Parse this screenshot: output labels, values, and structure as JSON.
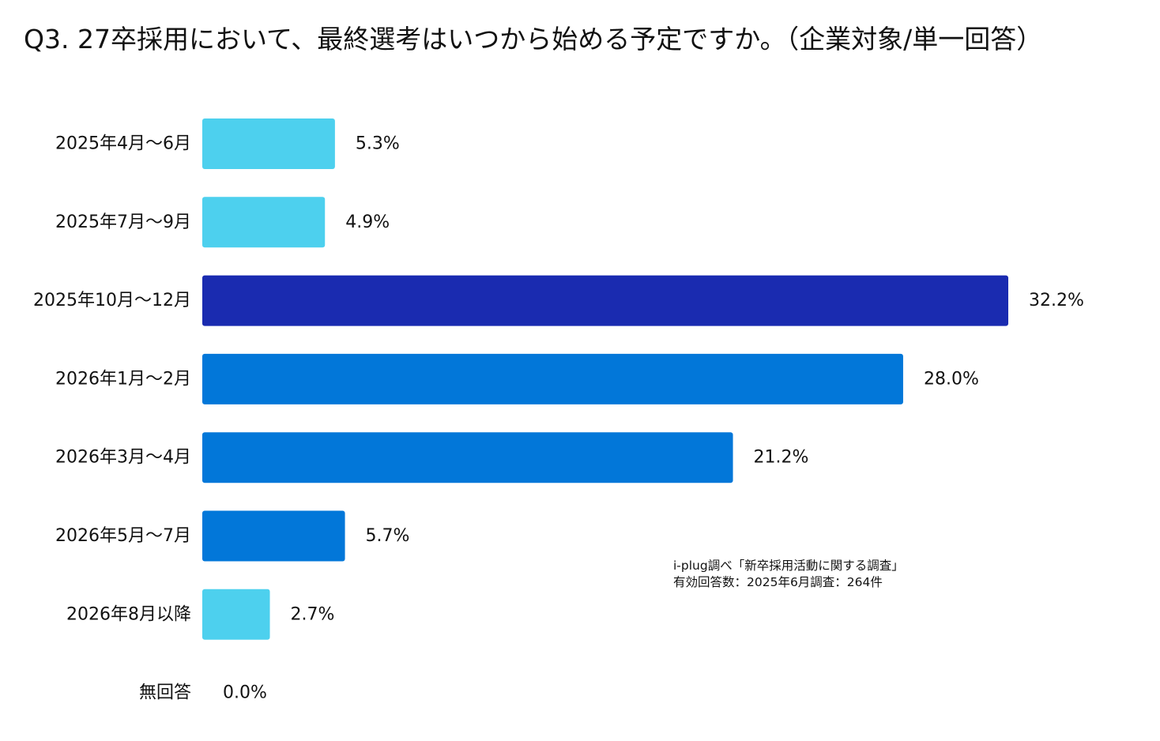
{
  "chart_data": {
    "type": "bar",
    "orientation": "horizontal",
    "title": "Q3. 27卒採用において、最終選考はいつから始める予定ですか。（企業対象/単一回答）",
    "categories": [
      "2025年4月～6月",
      "2025年7月～9月",
      "2025年10月～12月",
      "2026年1月～2月",
      "2026年3月～4月",
      "2026年5月～7月",
      "2026年8月以降",
      "無回答"
    ],
    "values": [
      5.3,
      4.9,
      32.2,
      28.0,
      21.2,
      5.7,
      2.7,
      0.0
    ],
    "value_labels": [
      "5.3%",
      "4.9%",
      "32.2%",
      "28.0%",
      "21.2%",
      "5.7%",
      "2.7%",
      "0.0%"
    ],
    "bar_colors": [
      "#4dd0ee",
      "#4dd0ee",
      "#1a2bb0",
      "#0277d9",
      "#0277d9",
      "#0277d9",
      "#4dd0ee",
      "#4dd0ee"
    ],
    "xlim": [
      0,
      32.2
    ],
    "xlabel": "",
    "ylabel": "",
    "grid": false,
    "legend": "none"
  },
  "source_note": {
    "line1": "i-plug調べ「新卒採用活動に関する調査」",
    "line2": "有効回答数：2025年6月調査：264件"
  }
}
